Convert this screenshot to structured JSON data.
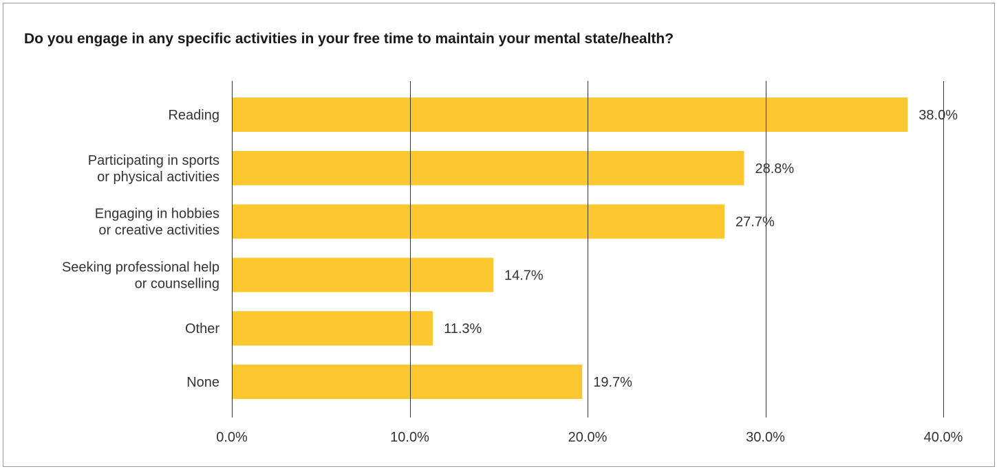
{
  "chart_data": {
    "type": "bar",
    "orientation": "horizontal",
    "title": "Do you engage in any specific activities in your free time to maintain your mental state/health?",
    "categories": [
      [
        "Reading"
      ],
      [
        "Participating in sports",
        "or physical activities"
      ],
      [
        "Engaging in hobbies",
        "or creative activities"
      ],
      [
        "Seeking professional help",
        "or counselling"
      ],
      [
        "Other"
      ],
      [
        "None"
      ]
    ],
    "values": [
      38.0,
      28.8,
      27.7,
      14.7,
      11.3,
      19.7
    ],
    "value_labels": [
      "38.0%",
      "28.8%",
      "27.7%",
      "14.7%",
      "11.3%",
      "19.7%"
    ],
    "xlim": [
      0,
      40
    ],
    "xticks": [
      0,
      10,
      20,
      30,
      40
    ],
    "xtick_labels": [
      "0.0%",
      "10.0%",
      "20.0%",
      "30.0%",
      "40.0%"
    ],
    "xlabel": "",
    "ylabel": "",
    "grid": "vertical",
    "legend": "none",
    "bar_color": "#FDC82F",
    "grid_color": "#333333"
  }
}
